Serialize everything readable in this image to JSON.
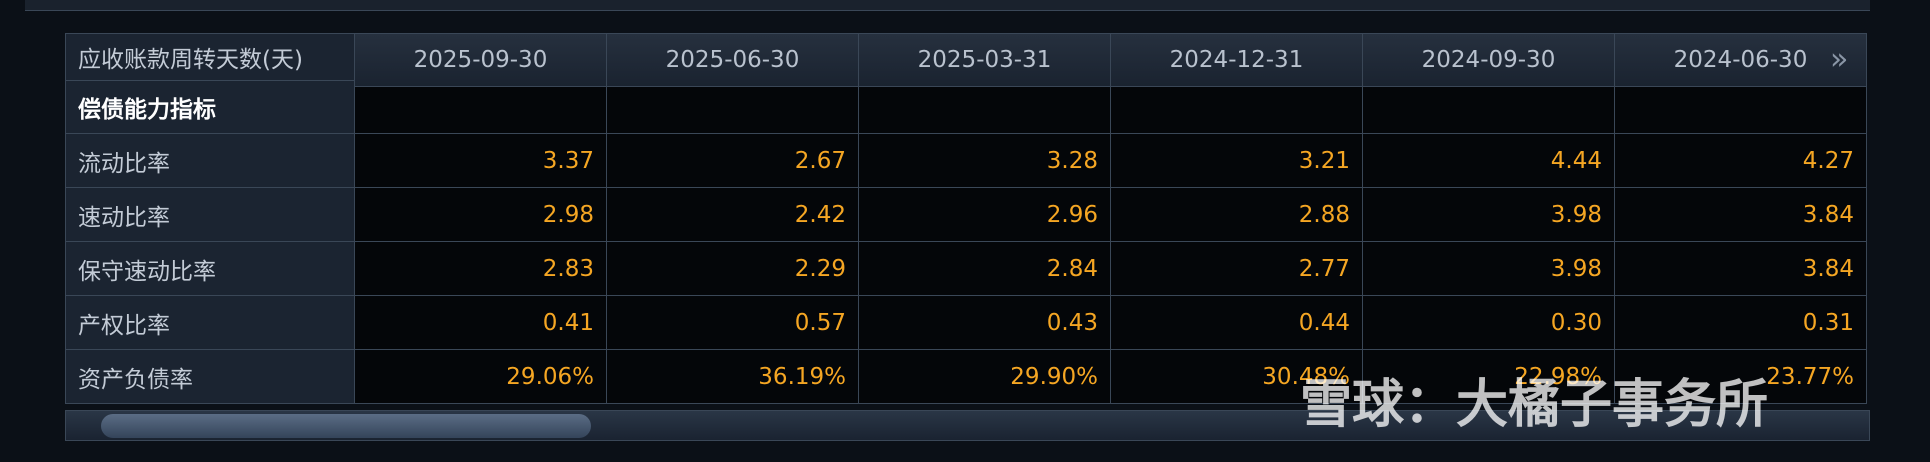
{
  "header": {
    "label": "应收账款周转天数(天)",
    "dates": [
      "2025-09-30",
      "2025-06-30",
      "2025-03-31",
      "2024-12-31",
      "2024-09-30",
      "2024-06-30"
    ]
  },
  "section": "偿债能力指标",
  "rows": [
    {
      "label": "流动比率",
      "values": [
        "3.37",
        "2.67",
        "3.28",
        "3.21",
        "4.44",
        "4.27"
      ]
    },
    {
      "label": "速动比率",
      "values": [
        "2.98",
        "2.42",
        "2.96",
        "2.88",
        "3.98",
        "3.84"
      ]
    },
    {
      "label": "保守速动比率",
      "values": [
        "2.83",
        "2.29",
        "2.84",
        "2.77",
        "3.98",
        "3.84"
      ]
    },
    {
      "label": "产权比率",
      "values": [
        "0.41",
        "0.57",
        "0.43",
        "0.44",
        "0.30",
        "0.31"
      ]
    },
    {
      "label": "资产负债率",
      "values": [
        "29.06%",
        "36.19%",
        "29.90%",
        "30.48%",
        "22.98%",
        "23.77%"
      ]
    }
  ],
  "watermark": "雪球：大橘子事务所"
}
